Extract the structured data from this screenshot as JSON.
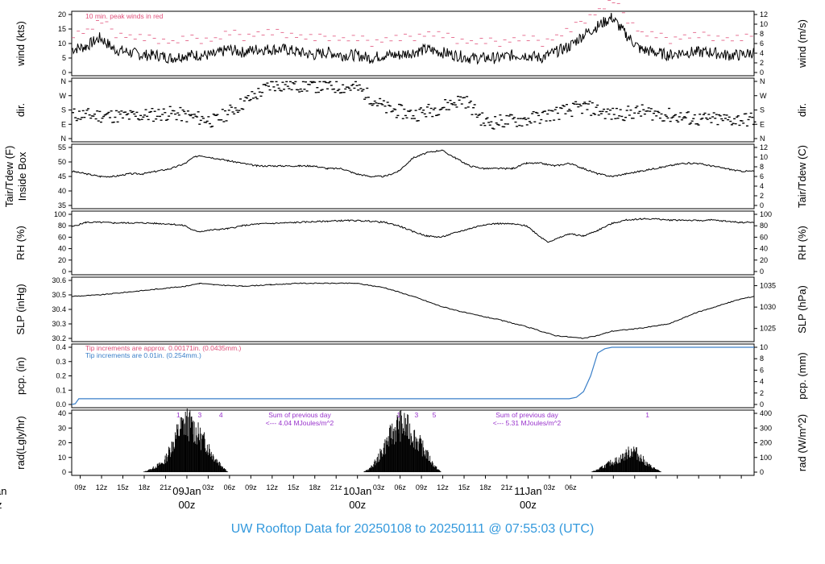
{
  "title": "UW Rooftop Data for 20250108  to  20250111 @ 07:55:03  (UTC)",
  "colors": {
    "peak": "#e0507a",
    "blue": "#3a7fc8",
    "purple": "#9933cc",
    "date": "#e0507a",
    "title": "#3399dd"
  },
  "chart_data": [
    {
      "type": "line",
      "panel": "wind",
      "ylabel_left": "wind (kts)",
      "ylabel_right": "wind (m/s)",
      "yticks_left": [
        "0",
        "5",
        "10",
        "15",
        "20"
      ],
      "yticks_right": [
        "0",
        "2",
        "4",
        "6",
        "8",
        "10",
        "12"
      ],
      "ylim": [
        0,
        23
      ],
      "annotation": "10 min. peak winds in red",
      "series": [
        {
          "points": [
            [
              0,
              8
            ],
            [
              2,
              9
            ],
            [
              4,
              12
            ],
            [
              6,
              8
            ],
            [
              8,
              7
            ],
            [
              10,
              6
            ],
            [
              12,
              6
            ],
            [
              14,
              5
            ],
            [
              16,
              6
            ],
            [
              18,
              6
            ],
            [
              20,
              6
            ],
            [
              22,
              8
            ],
            [
              24,
              7
            ],
            [
              26,
              8
            ],
            [
              28,
              8
            ],
            [
              30,
              8
            ],
            [
              32,
              7
            ],
            [
              34,
              6
            ],
            [
              36,
              7
            ],
            [
              38,
              6
            ],
            [
              40,
              6
            ],
            [
              42,
              5
            ],
            [
              44,
              6
            ],
            [
              46,
              6
            ],
            [
              48,
              7
            ],
            [
              50,
              8
            ],
            [
              52,
              7
            ],
            [
              54,
              6
            ],
            [
              56,
              5
            ],
            [
              58,
              5
            ],
            [
              60,
              5
            ],
            [
              62,
              6
            ],
            [
              64,
              6
            ],
            [
              66,
              5
            ],
            [
              68,
              7
            ],
            [
              70,
              9
            ],
            [
              72,
              13
            ],
            [
              74,
              16
            ],
            [
              76,
              19
            ],
            [
              78,
              13
            ],
            [
              80,
              8
            ],
            [
              82,
              7
            ],
            [
              84,
              6
            ],
            [
              86,
              7
            ],
            [
              88,
              7
            ],
            [
              90,
              7
            ],
            [
              92,
              6
            ],
            [
              94,
              6
            ],
            [
              96,
              7
            ]
          ]
        }
      ]
    },
    {
      "type": "scatter",
      "panel": "dir",
      "ylabel_left": "dir.",
      "ylabel_right": "dir.",
      "yticks": [
        "N",
        "E",
        "S",
        "W",
        "N"
      ]
    },
    {
      "type": "line",
      "panel": "tair",
      "ylabel_left_lines": [
        "Tair/Tdew (F)",
        "Inside Box"
      ],
      "ylabel_right": "Tair/Tdew (C)",
      "yticks_left": [
        "35",
        "40",
        "45",
        "50",
        "55"
      ],
      "yticks_right": [
        "0",
        "2",
        "4",
        "6",
        "8",
        "10",
        "12"
      ],
      "ylim": [
        32,
        56
      ],
      "series": [
        {
          "points": [
            [
              0,
              46
            ],
            [
              2,
              45
            ],
            [
              4,
              44
            ],
            [
              6,
              44
            ],
            [
              8,
              45
            ],
            [
              10,
              45
            ],
            [
              12,
              46
            ],
            [
              14,
              47
            ],
            [
              16,
              49
            ],
            [
              17,
              51
            ],
            [
              18,
              52
            ],
            [
              20,
              51
            ],
            [
              22,
              50
            ],
            [
              24,
              49
            ],
            [
              26,
              48
            ],
            [
              28,
              48
            ],
            [
              30,
              48
            ],
            [
              32,
              48
            ],
            [
              34,
              48
            ],
            [
              36,
              47
            ],
            [
              38,
              47
            ],
            [
              40,
              45
            ],
            [
              42,
              44
            ],
            [
              44,
              44
            ],
            [
              46,
              46
            ],
            [
              48,
              51
            ],
            [
              50,
              53
            ],
            [
              52,
              54
            ],
            [
              54,
              51
            ],
            [
              56,
              48
            ],
            [
              58,
              47
            ],
            [
              60,
              47
            ],
            [
              62,
              47
            ],
            [
              64,
              49
            ],
            [
              66,
              49
            ],
            [
              68,
              48
            ],
            [
              70,
              49
            ],
            [
              72,
              47
            ],
            [
              74,
              45
            ],
            [
              76,
              44
            ],
            [
              78,
              45
            ],
            [
              80,
              46
            ],
            [
              82,
              47
            ],
            [
              84,
              48
            ],
            [
              86,
              49
            ],
            [
              88,
              49
            ],
            [
              90,
              48
            ],
            [
              92,
              47
            ],
            [
              94,
              46
            ],
            [
              96,
              46
            ]
          ]
        }
      ]
    },
    {
      "type": "line",
      "panel": "rh",
      "ylabel_left": "RH (%)",
      "ylabel_right": "RH (%)",
      "yticks": [
        "0",
        "20",
        "40",
        "60",
        "80",
        "100"
      ],
      "ylim": [
        0,
        100
      ],
      "series": [
        {
          "points": [
            [
              0,
              78
            ],
            [
              2,
              86
            ],
            [
              4,
              86
            ],
            [
              6,
              85
            ],
            [
              8,
              85
            ],
            [
              10,
              85
            ],
            [
              12,
              84
            ],
            [
              14,
              83
            ],
            [
              16,
              80
            ],
            [
              17,
              72
            ],
            [
              18,
              70
            ],
            [
              20,
              73
            ],
            [
              22,
              75
            ],
            [
              24,
              80
            ],
            [
              26,
              83
            ],
            [
              28,
              84
            ],
            [
              30,
              85
            ],
            [
              32,
              86
            ],
            [
              34,
              87
            ],
            [
              36,
              88
            ],
            [
              38,
              89
            ],
            [
              40,
              89
            ],
            [
              42,
              88
            ],
            [
              44,
              86
            ],
            [
              46,
              80
            ],
            [
              48,
              70
            ],
            [
              50,
              62
            ],
            [
              52,
              60
            ],
            [
              54,
              68
            ],
            [
              56,
              75
            ],
            [
              58,
              82
            ],
            [
              60,
              84
            ],
            [
              62,
              83
            ],
            [
              64,
              80
            ],
            [
              66,
              60
            ],
            [
              67,
              52
            ],
            [
              68,
              56
            ],
            [
              70,
              66
            ],
            [
              72,
              62
            ],
            [
              74,
              72
            ],
            [
              76,
              84
            ],
            [
              78,
              90
            ],
            [
              80,
              92
            ],
            [
              82,
              92
            ],
            [
              84,
              90
            ],
            [
              86,
              90
            ],
            [
              88,
              89
            ],
            [
              90,
              90
            ],
            [
              92,
              88
            ],
            [
              94,
              86
            ],
            [
              96,
              86
            ]
          ]
        }
      ]
    },
    {
      "type": "line",
      "panel": "slp",
      "ylabel_left": "SLP (inHg)",
      "ylabel_right": "SLP (hPa)",
      "yticks_left": [
        "30.2",
        "30.3",
        "30.4",
        "30.5",
        "30.6"
      ],
      "yticks_right": [
        "1025",
        "1030",
        "1035"
      ],
      "ylim": [
        30.18,
        30.62
      ],
      "series": [
        {
          "points": [
            [
              0,
              30.49
            ],
            [
              4,
              30.5
            ],
            [
              8,
              30.52
            ],
            [
              12,
              30.54
            ],
            [
              16,
              30.56
            ],
            [
              18,
              30.58
            ],
            [
              20,
              30.57
            ],
            [
              24,
              30.56
            ],
            [
              28,
              30.57
            ],
            [
              32,
              30.58
            ],
            [
              36,
              30.58
            ],
            [
              40,
              30.58
            ],
            [
              44,
              30.55
            ],
            [
              48,
              30.49
            ],
            [
              52,
              30.42
            ],
            [
              56,
              30.37
            ],
            [
              60,
              30.33
            ],
            [
              64,
              30.28
            ],
            [
              66,
              30.25
            ],
            [
              68,
              30.22
            ],
            [
              70,
              30.21
            ],
            [
              72,
              30.2
            ],
            [
              74,
              30.22
            ],
            [
              76,
              30.25
            ],
            [
              80,
              30.27
            ],
            [
              84,
              30.3
            ],
            [
              88,
              30.38
            ],
            [
              92,
              30.44
            ],
            [
              94,
              30.47
            ],
            [
              96,
              30.49
            ]
          ]
        }
      ]
    },
    {
      "type": "line",
      "panel": "pcp",
      "ylabel_left": "pcp. (in)",
      "ylabel_right": "pcp. (mm)",
      "yticks_left": [
        "0.0",
        "0.1",
        "0.2",
        "0.3",
        "0.4"
      ],
      "yticks_right": [
        "0",
        "2",
        "4",
        "6",
        "8",
        "10"
      ],
      "ylim": [
        0,
        0.41
      ],
      "note_pink": "Tip increments are approx. 0.00171in. (0.0435mm.)",
      "note_blue": "Tip increments are 0.01in. (0.254mm.)",
      "series": [
        {
          "points": [
            [
              0,
              0.0
            ],
            [
              0.5,
              0.005
            ],
            [
              1,
              0.04
            ],
            [
              70,
              0.04
            ],
            [
              71,
              0.05
            ],
            [
              72,
              0.09
            ],
            [
              73,
              0.2
            ],
            [
              74,
              0.36
            ],
            [
              75,
              0.39
            ],
            [
              76,
              0.4
            ],
            [
              96,
              0.4
            ]
          ]
        }
      ]
    },
    {
      "type": "area",
      "panel": "rad",
      "ylabel_left": "rad(Lgly/hr)",
      "ylabel_right": "rad (W/m^2)",
      "yticks_left": [
        "0",
        "10",
        "20",
        "30",
        "40"
      ],
      "yticks_right": [
        "0",
        "100",
        "200",
        "300",
        "400"
      ],
      "ylim": [
        0,
        42
      ],
      "labels_top": [
        "1",
        "3",
        "4",
        "1",
        "3",
        "5",
        "1"
      ],
      "sum_notes": [
        {
          "line1": "Sum of previous day",
          "line2": "<--- 4.04 MJoules/m^2"
        },
        {
          "line1": "Sum of previous day",
          "line2": "<--- 5.31 MJoules/m^2"
        }
      ],
      "series": [
        {
          "points": [
            [
              10,
              0
            ],
            [
              11,
              2
            ],
            [
              13,
              8
            ],
            [
              14,
              20
            ],
            [
              15,
              32
            ],
            [
              16,
              40
            ],
            [
              17,
              36
            ],
            [
              18,
              28
            ],
            [
              19,
              22
            ],
            [
              20,
              12
            ],
            [
              21,
              6
            ],
            [
              22,
              0
            ],
            [
              41,
              0
            ],
            [
              42,
              3
            ],
            [
              43,
              10
            ],
            [
              44,
              20
            ],
            [
              45,
              30
            ],
            [
              46,
              38
            ],
            [
              47,
              36
            ],
            [
              48,
              30
            ],
            [
              49,
              22
            ],
            [
              50,
              14
            ],
            [
              51,
              5
            ],
            [
              52,
              0
            ],
            [
              73,
              0
            ],
            [
              74,
              2
            ],
            [
              75,
              5
            ],
            [
              76,
              8
            ],
            [
              77,
              10
            ],
            [
              78,
              14
            ],
            [
              79,
              18
            ],
            [
              80,
              12
            ],
            [
              81,
              6
            ],
            [
              82,
              3
            ],
            [
              83,
              0
            ]
          ]
        }
      ]
    }
  ],
  "xaxis": {
    "ticks": [
      "09z",
      "12z",
      "15z",
      "18z",
      "21z",
      "03z",
      "06z",
      "09z",
      "12z",
      "15z",
      "18z",
      "21z",
      "03z",
      "06z",
      "09z",
      "12z",
      "15z",
      "18z",
      "21z",
      "03z",
      "06z"
    ],
    "dates": [
      {
        "label": "09Jan",
        "sub": "00z"
      },
      {
        "label": "10Jan",
        "sub": "00z"
      },
      {
        "label": "11Jan",
        "sub": "00z"
      }
    ],
    "clipped_label": "an",
    "clipped_sub": "z"
  }
}
